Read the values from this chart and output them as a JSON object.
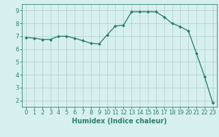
{
  "x": [
    0,
    1,
    2,
    3,
    4,
    5,
    6,
    7,
    8,
    9,
    10,
    11,
    12,
    13,
    14,
    15,
    16,
    17,
    18,
    19,
    20,
    21,
    22,
    23
  ],
  "y": [
    6.9,
    6.85,
    6.75,
    6.75,
    7.0,
    7.0,
    6.85,
    6.65,
    6.45,
    6.4,
    7.1,
    7.8,
    7.85,
    8.9,
    8.9,
    8.9,
    8.9,
    8.5,
    8.0,
    7.75,
    7.4,
    5.65,
    3.85,
    1.8
  ],
  "line_color": "#2e7d6e",
  "marker": "D",
  "marker_size": 2,
  "bg_color": "#d6f0f0",
  "grid_color": "#b0c8c8",
  "xlabel": "Humidex (Indice chaleur)",
  "xlim": [
    -0.5,
    23.5
  ],
  "ylim": [
    1.5,
    9.5
  ],
  "yticks": [
    2,
    3,
    4,
    5,
    6,
    7,
    8,
    9
  ],
  "xticks": [
    0,
    1,
    2,
    3,
    4,
    5,
    6,
    7,
    8,
    9,
    10,
    11,
    12,
    13,
    14,
    15,
    16,
    17,
    18,
    19,
    20,
    21,
    22,
    23
  ],
  "tick_color": "#2e7d6e",
  "label_color": "#2e7d6e",
  "xlabel_fontsize": 7,
  "tick_fontsize": 6
}
